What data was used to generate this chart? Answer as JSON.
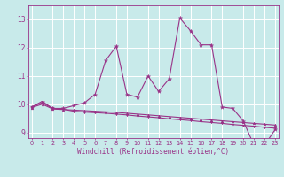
{
  "xlabel": "Windchill (Refroidissement éolien,°C)",
  "bg_color": "#c8eaea",
  "line_color": "#993388",
  "x": [
    0,
    1,
    2,
    3,
    4,
    5,
    6,
    7,
    8,
    9,
    10,
    11,
    12,
    13,
    14,
    15,
    16,
    17,
    18,
    19,
    20,
    21,
    22,
    23
  ],
  "series1": [
    9.9,
    10.1,
    9.85,
    9.85,
    9.95,
    10.05,
    10.35,
    11.55,
    12.05,
    10.35,
    10.25,
    11.0,
    10.45,
    10.9,
    13.05,
    12.6,
    12.1,
    12.1,
    9.9,
    9.85,
    9.4,
    8.55,
    8.55,
    9.1
  ],
  "series2": [
    9.9,
    10.05,
    9.85,
    9.82,
    9.75,
    9.72,
    9.7,
    9.68,
    9.65,
    9.62,
    9.58,
    9.55,
    9.52,
    9.48,
    9.45,
    9.42,
    9.38,
    9.35,
    9.32,
    9.28,
    9.25,
    9.22,
    9.18,
    9.15
  ],
  "series3": [
    9.88,
    10.0,
    9.83,
    9.81,
    9.79,
    9.77,
    9.75,
    9.73,
    9.71,
    9.68,
    9.65,
    9.62,
    9.59,
    9.56,
    9.53,
    9.5,
    9.47,
    9.44,
    9.41,
    9.38,
    9.35,
    9.32,
    9.29,
    9.26
  ],
  "ylim": [
    8.8,
    13.5
  ],
  "yticks": [
    9,
    10,
    11,
    12,
    13
  ],
  "xticks": [
    0,
    1,
    2,
    3,
    4,
    5,
    6,
    7,
    8,
    9,
    10,
    11,
    12,
    13,
    14,
    15,
    16,
    17,
    18,
    19,
    20,
    21,
    22,
    23
  ]
}
